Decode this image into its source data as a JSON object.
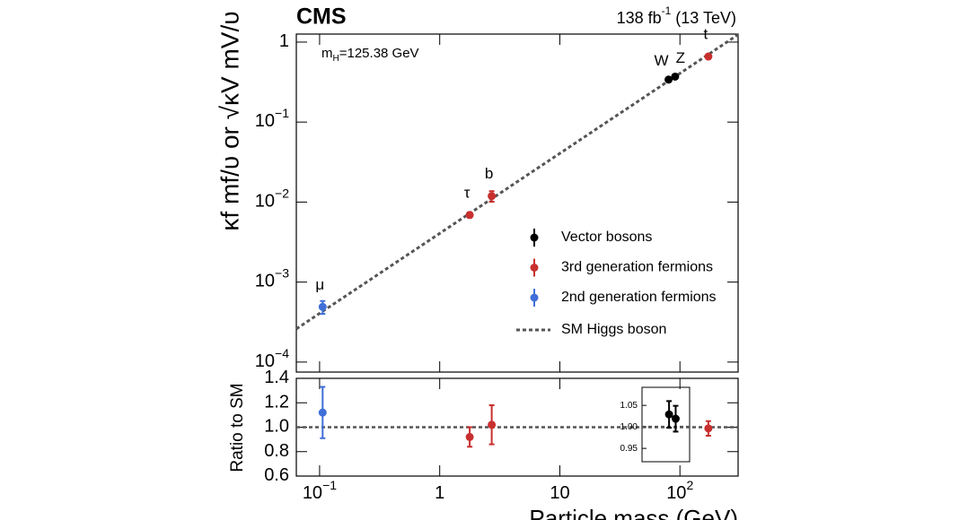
{
  "chart_data": [
    {
      "type": "scatter",
      "title": "CMS",
      "lumi": [
        "138 fb",
        "-1",
        " (13 TeV)"
      ],
      "annotation": [
        "m",
        "H",
        "=125.38 GeV"
      ],
      "ylabel": "κf mf/υ or √κV mV/υ",
      "log_x": true,
      "log_y": true,
      "xlim": [
        0.064,
        305
      ],
      "ylim": [
        7.5e-05,
        1.26
      ],
      "yticks": [
        {
          "value": 0.0001,
          "label": "10",
          "exp": "−4"
        },
        {
          "value": 0.001,
          "label": "10",
          "exp": "−3"
        },
        {
          "value": 0.01,
          "label": "10",
          "exp": "−2"
        },
        {
          "value": 0.1,
          "label": "10",
          "exp": "−1"
        },
        1
      ],
      "series": [
        {
          "name": "Vector bosons",
          "color": "#000000",
          "labels": [
            "W",
            "Z"
          ],
          "x": [
            80.4,
            91.2
          ],
          "values": [
            0.34,
            0.37
          ],
          "errors": [
            0.01,
            0.01
          ]
        },
        {
          "name": "3rd generation fermions",
          "color": "#c8302e",
          "labels": [
            "τ",
            "b",
            "t"
          ],
          "x": [
            1.777,
            2.71,
            172.5
          ],
          "values": [
            0.0069,
            0.0119,
            0.66
          ],
          "errors": [
            0.0005,
            0.0018,
            0.04
          ]
        },
        {
          "name": "2nd generation fermions",
          "color": "#3f6fd8",
          "labels": [
            "μ"
          ],
          "x": [
            0.106
          ],
          "values": [
            0.00049
          ],
          "errors": [
            9e-05
          ]
        }
      ],
      "sm_line": {
        "name": "SM Higgs boson",
        "color": "#555555",
        "x": [
          0.064,
          305
        ],
        "values": [
          0.00026,
          1.24
        ]
      },
      "legend": "lower right"
    },
    {
      "type": "scatter",
      "ylabel": "Ratio to SM",
      "xlabel": "Particle mass (GeV)",
      "log_x": true,
      "xlim": [
        0.064,
        305
      ],
      "ylim": [
        0.6,
        1.4
      ],
      "xticks": [
        {
          "value": 0.1,
          "label": "10",
          "exp": "−1"
        },
        1,
        10,
        {
          "value": 100,
          "label": "10",
          "exp": "2"
        }
      ],
      "yticks": [
        0.6,
        0.8,
        {
          "value": 1,
          "label": "1.0"
        },
        1.2,
        1.4
      ],
      "reference": 1,
      "series": [
        {
          "color": "#3f6fd8",
          "x": [
            0.106
          ],
          "values": [
            1.12
          ],
          "errors": [
            0.21
          ]
        },
        {
          "color": "#c8302e",
          "x": [
            1.777,
            2.71,
            172.5
          ],
          "values": [
            0.92,
            1.02,
            0.99
          ],
          "errors": [
            0.08,
            0.16,
            0.06
          ]
        }
      ]
    },
    {
      "type": "scatter",
      "log_x": true,
      "xlim": [
        48,
        119
      ],
      "ylim": [
        0.919,
        1.092
      ],
      "yticks": [
        {
          "value": 0.95,
          "label": "0.95"
        },
        {
          "value": 1,
          "label": "1.00"
        },
        {
          "value": 1.05,
          "label": "1.05"
        }
      ],
      "reference": 1,
      "series": [
        {
          "color": "#000000",
          "x": [
            80.4,
            91.2
          ],
          "values": [
            1.029,
            1.019
          ],
          "errors": [
            0.031,
            0.03
          ]
        }
      ]
    }
  ]
}
